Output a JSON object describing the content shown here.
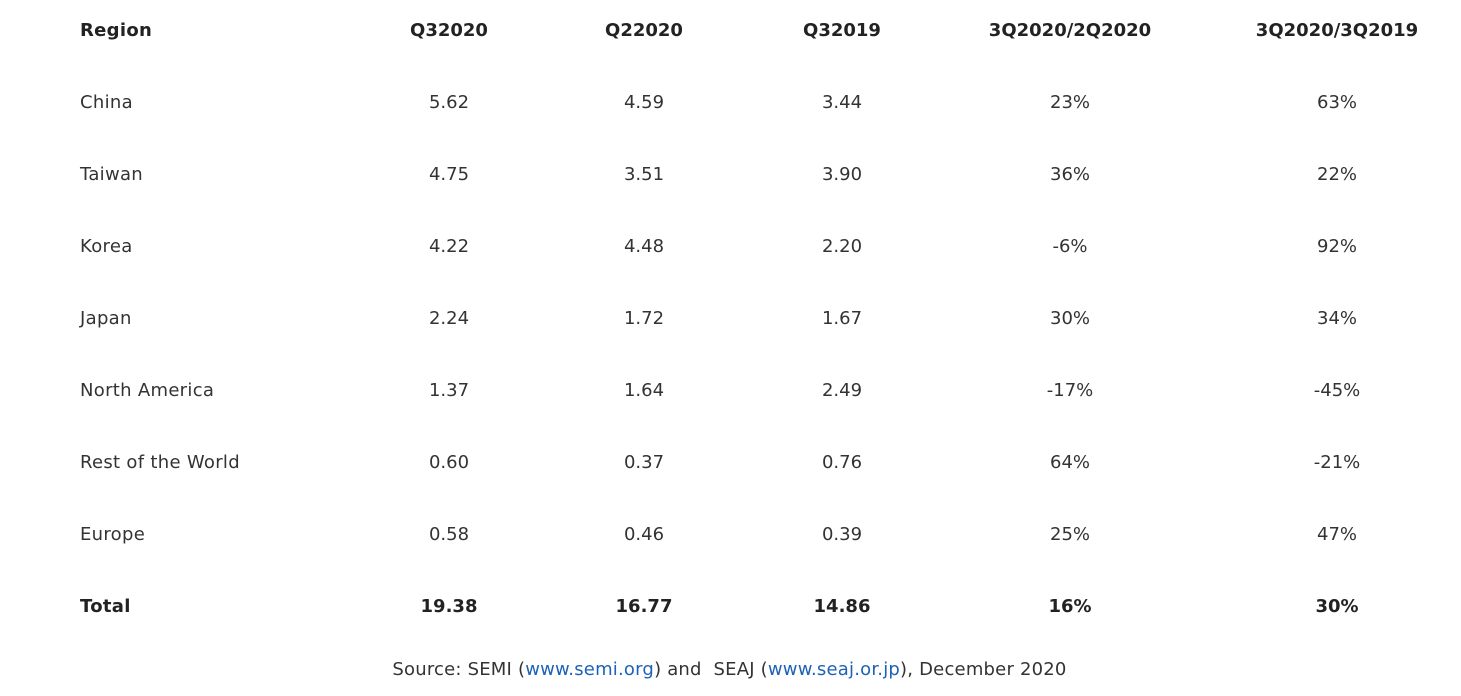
{
  "table": {
    "headers": [
      "Region",
      "Q32020",
      "Q22020",
      "Q32019",
      "3Q2020/2Q2020",
      "3Q2020/3Q2019"
    ],
    "rows": [
      [
        "China",
        "5.62",
        "4.59",
        "3.44",
        "23%",
        "63%"
      ],
      [
        "Taiwan",
        "4.75",
        "3.51",
        "3.90",
        "36%",
        "22%"
      ],
      [
        "Korea",
        "4.22",
        "4.48",
        "2.20",
        "-6%",
        "92%"
      ],
      [
        "Japan",
        "2.24",
        "1.72",
        "1.67",
        "30%",
        "34%"
      ],
      [
        "North America",
        "1.37",
        "1.64",
        "2.49",
        "-17%",
        "-45%"
      ],
      [
        "Rest of the World",
        "0.60",
        "0.37",
        "0.76",
        "64%",
        "-21%"
      ],
      [
        "Europe",
        "0.58",
        "0.46",
        "0.39",
        "25%",
        "47%"
      ]
    ],
    "total": [
      "Total",
      "19.38",
      "16.77",
      "14.86",
      "16%",
      "30%"
    ]
  },
  "source": {
    "prefix": "Source: SEMI (",
    "link1": "www.semi.org",
    "middle": ") and  SEAJ (",
    "link2": "www.seaj.or.jp",
    "suffix": "), December 2020"
  },
  "colors": {
    "text": "#333333",
    "link": "#1d62b7",
    "background": "#ffffff"
  }
}
